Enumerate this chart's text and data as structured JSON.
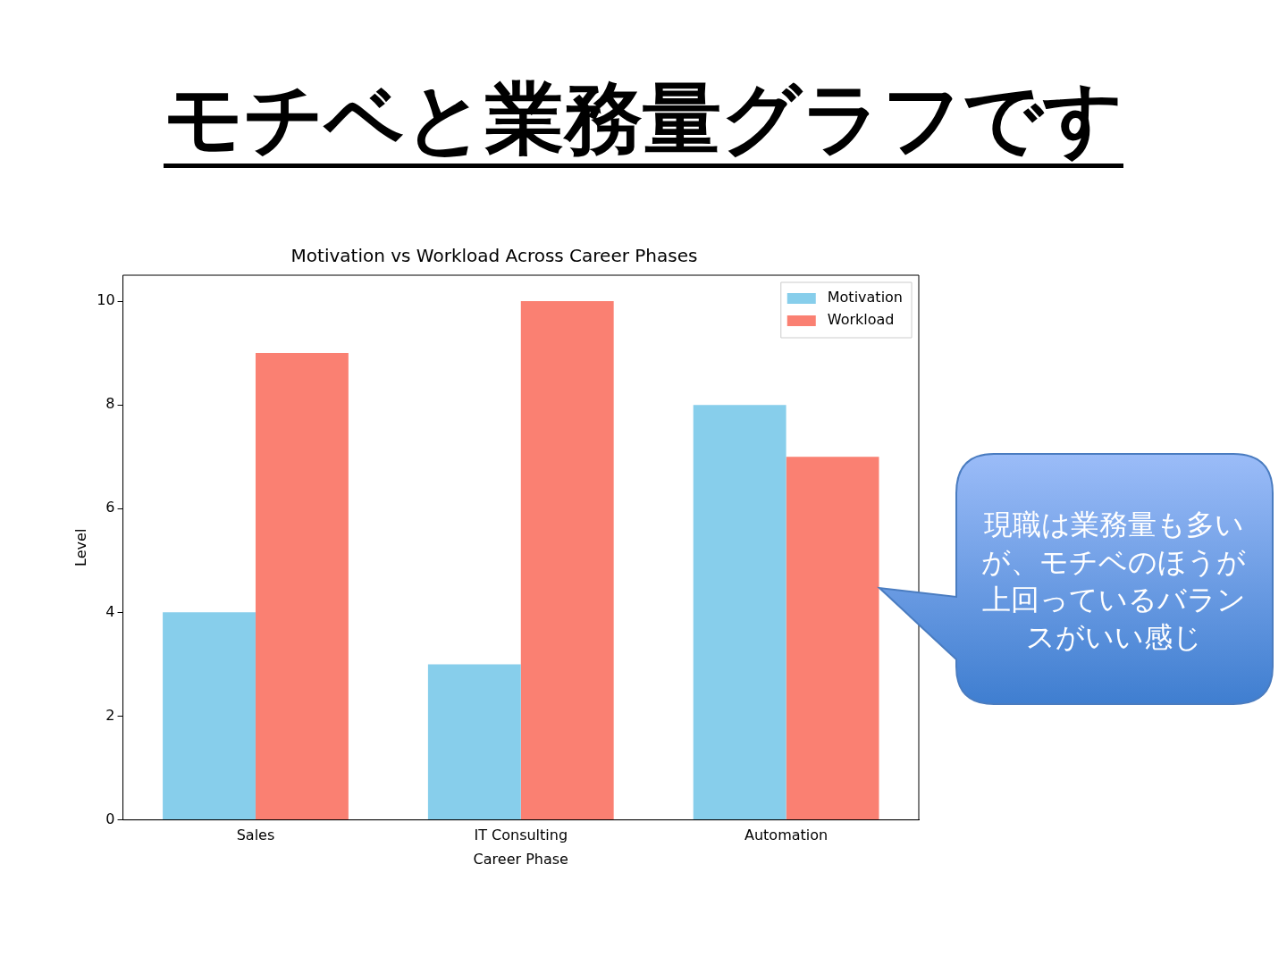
{
  "chart_data": {
    "type": "bar",
    "title": "Motivation vs Workload Across Career Phases",
    "subtitle": "モチベと業務量グラフです",
    "xlabel": "Career Phase",
    "ylabel": "Level",
    "categories": [
      "Sales",
      "IT Consulting",
      "Automation"
    ],
    "series": [
      {
        "name": "Motivation",
        "color": "#87ceeb",
        "values": [
          4,
          3,
          8
        ]
      },
      {
        "name": "Workload",
        "color": "#fa8072",
        "values": [
          9,
          10,
          7
        ]
      }
    ],
    "ylim": [
      0,
      10.5
    ],
    "yticks": [
      0,
      2,
      4,
      6,
      8,
      10
    ],
    "grid": false,
    "legend": "top right",
    "annotations": [
      "現職は業務量も多いが、モチベのほうが上回っているバランスがいい感じ"
    ]
  }
}
